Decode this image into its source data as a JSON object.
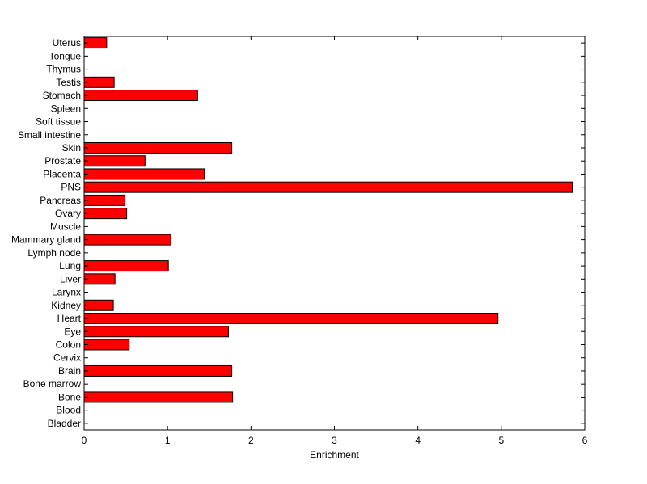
{
  "chart_data": {
    "type": "bar",
    "orientation": "horizontal",
    "title": "",
    "xlabel": "Enrichment",
    "ylabel": "",
    "xlim": [
      0,
      6
    ],
    "xticks": [
      0,
      1,
      2,
      3,
      4,
      5,
      6
    ],
    "grid": false,
    "bar_color": "#ff0000",
    "categories": [
      "Bladder",
      "Blood",
      "Bone",
      "Bone marrow",
      "Brain",
      "Cervix",
      "Colon",
      "Eye",
      "Heart",
      "Kidney",
      "Larynx",
      "Liver",
      "Lung",
      "Lymph node",
      "Mammary gland",
      "Muscle",
      "Ovary",
      "Pancreas",
      "PNS",
      "Placenta",
      "Prostate",
      "Skin",
      "Small intestine",
      "Soft tissue",
      "Spleen",
      "Stomach",
      "Testis",
      "Thymus",
      "Tongue",
      "Uterus"
    ],
    "values": [
      0,
      0,
      1.78,
      0,
      1.77,
      0,
      0.54,
      1.73,
      4.96,
      0.35,
      0,
      0.37,
      1.01,
      0,
      1.04,
      0,
      0.51,
      0.49,
      5.85,
      1.44,
      0.73,
      1.77,
      0,
      0,
      0,
      1.36,
      0.36,
      0,
      0,
      0.27
    ]
  }
}
